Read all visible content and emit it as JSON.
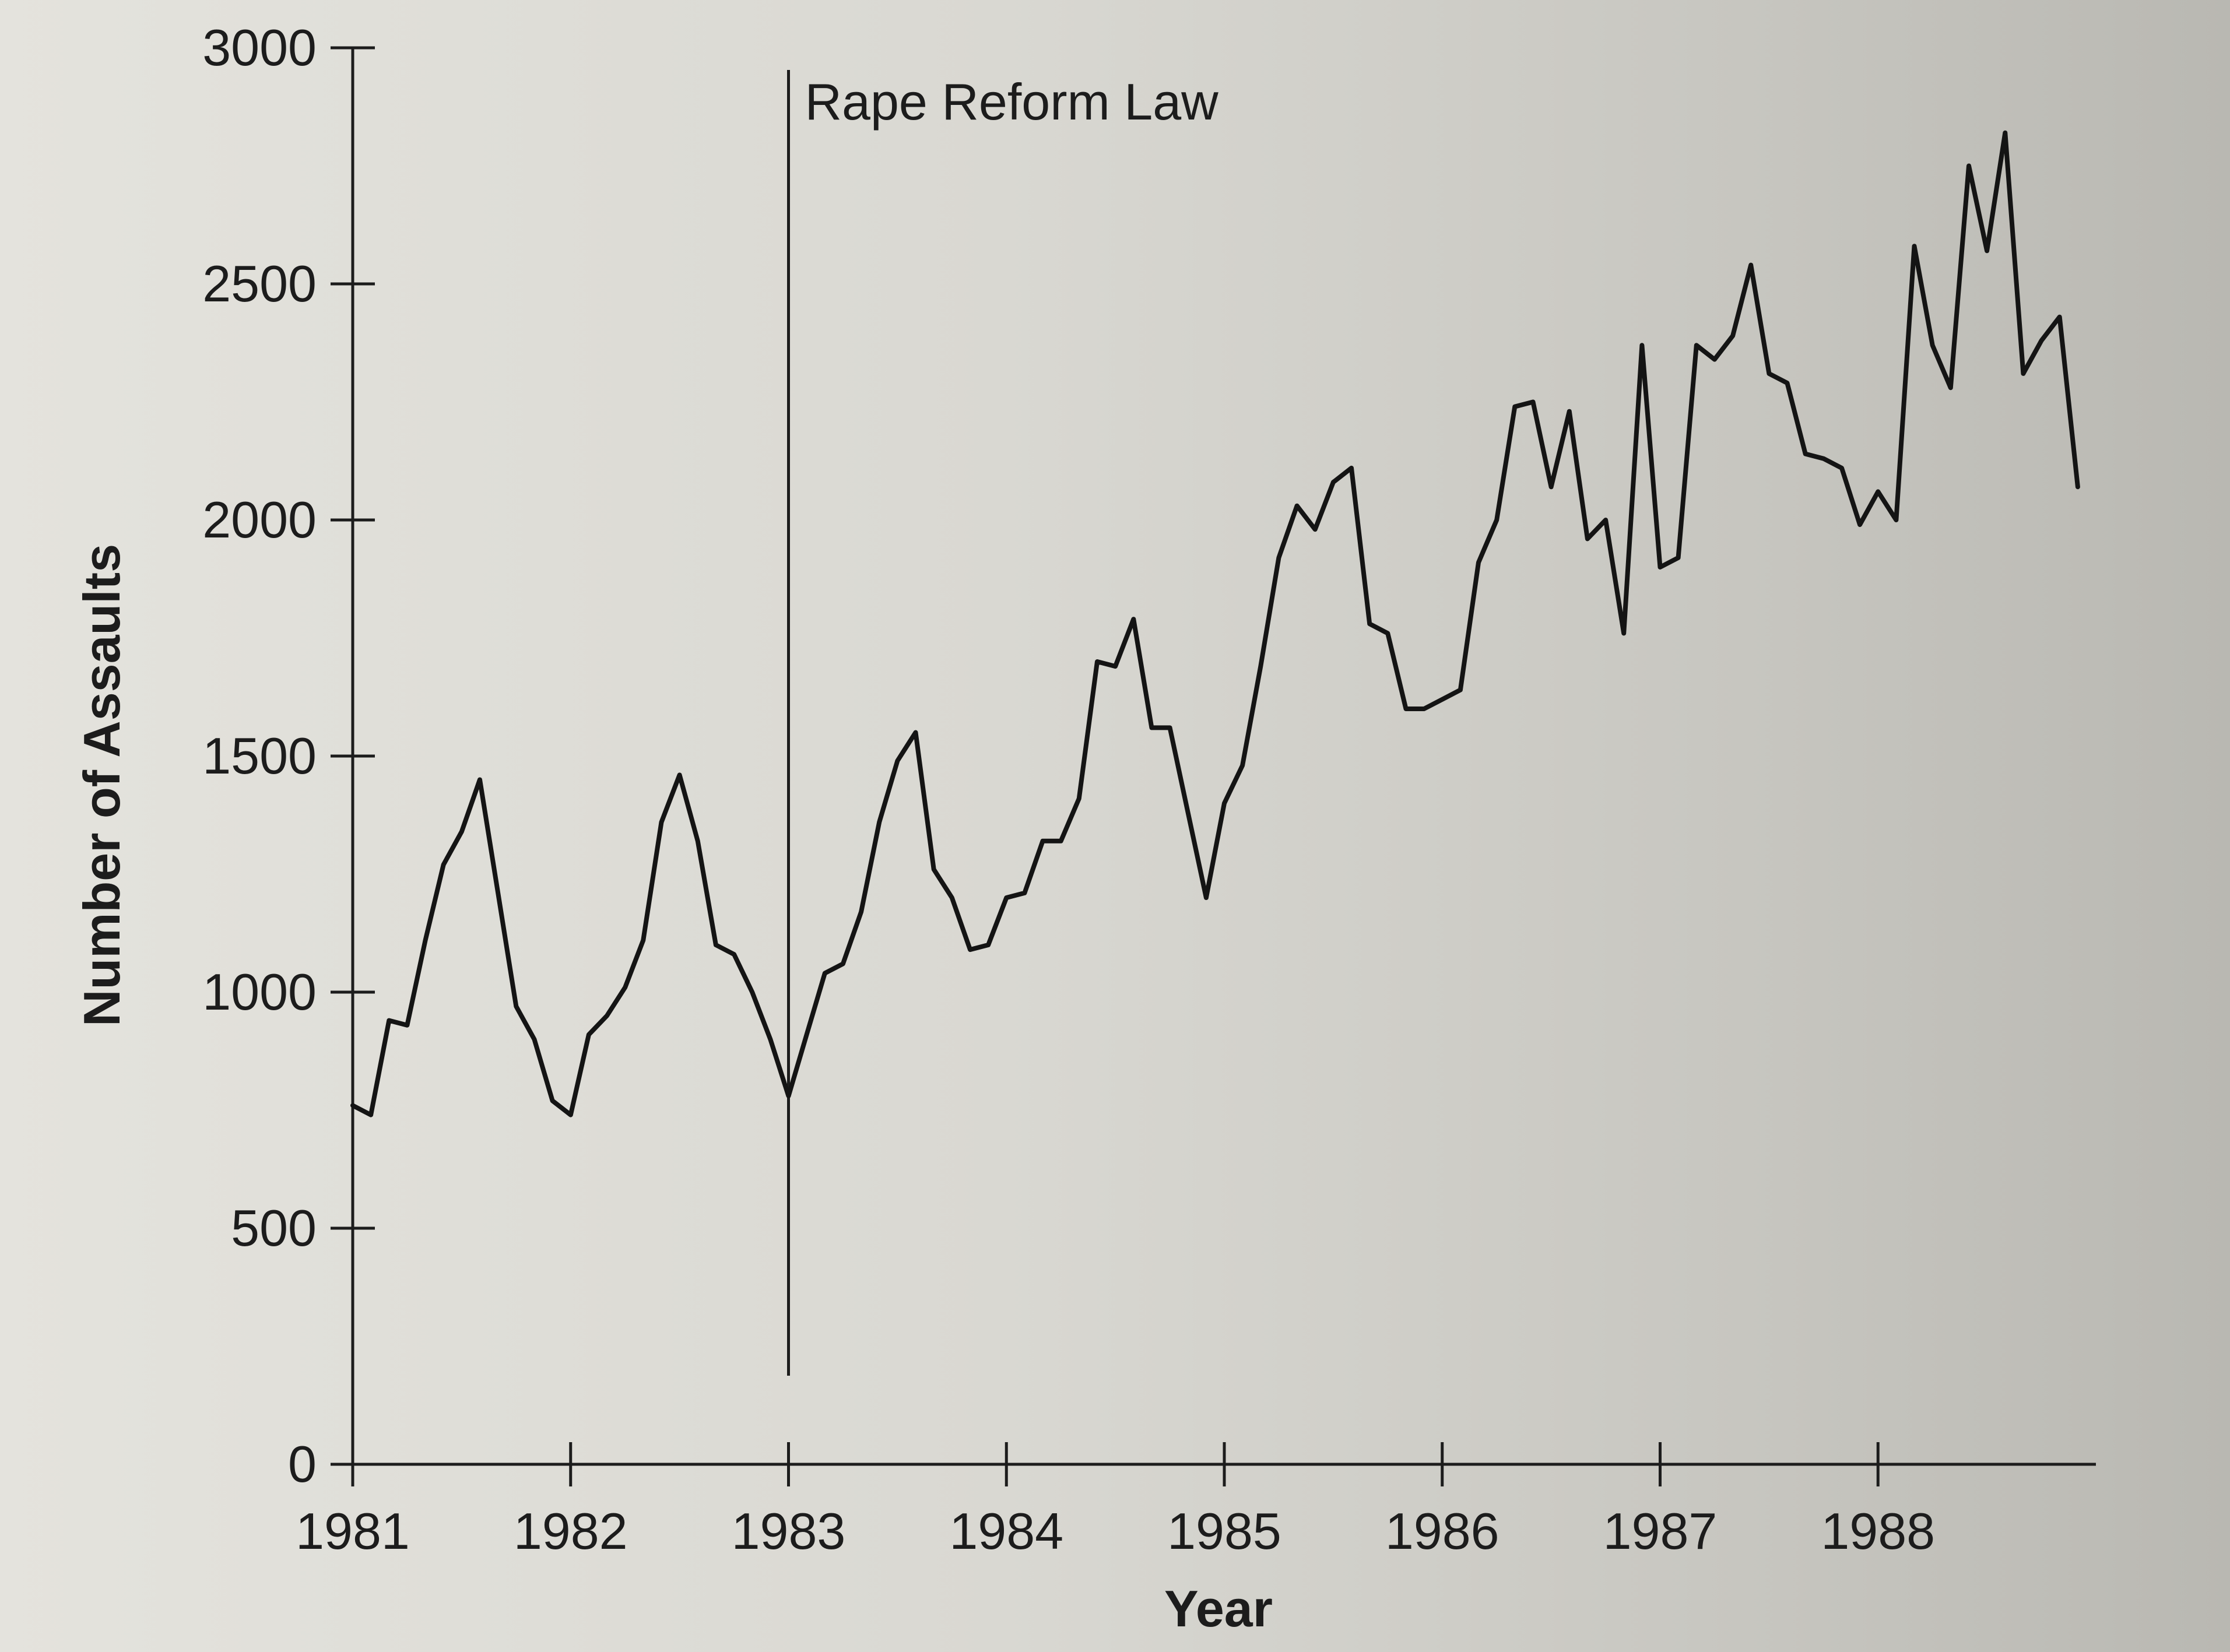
{
  "chart_data": {
    "type": "line",
    "title": "",
    "xlabel": "Year",
    "ylabel": "Number of Assaults",
    "x_ticks": [
      "1981",
      "1982",
      "1983",
      "1984",
      "1985",
      "1986",
      "1987",
      "1988"
    ],
    "y_ticks": [
      "0",
      "500",
      "1000",
      "1500",
      "2000",
      "2500",
      "3000"
    ],
    "xlim": [
      1981,
      1989
    ],
    "ylim": [
      0,
      3000
    ],
    "grid": false,
    "legend": "none",
    "annotation": {
      "label": "Rape Reform Law",
      "x": 1983
    },
    "series": [
      {
        "values": [
          760,
          740,
          940,
          930,
          1110,
          1270,
          1340,
          1450,
          1210,
          970,
          900,
          770,
          740,
          910,
          950,
          1010,
          1110,
          1360,
          1460,
          1320,
          1100,
          1080,
          1000,
          900,
          780,
          910,
          1040,
          1060,
          1170,
          1360,
          1490,
          1550,
          1260,
          1200,
          1090,
          1100,
          1200,
          1210,
          1320,
          1320,
          1410,
          1700,
          1690,
          1790,
          1560,
          1560,
          1380,
          1200,
          1400,
          1480,
          1690,
          1920,
          2030,
          1980,
          2080,
          2110,
          1780,
          1760,
          1600,
          1600,
          1620,
          1640,
          1910,
          2000,
          2240,
          2250,
          2070,
          2230,
          1960,
          2000,
          1760,
          2370,
          1900,
          1920,
          2370,
          2340,
          2390,
          2540,
          2310,
          2290,
          2140,
          2130,
          2110,
          1990,
          2060,
          2000,
          2580,
          2370,
          2280,
          2750,
          2570,
          2820,
          2310,
          2380,
          2430,
          2070
        ]
      }
    ]
  }
}
